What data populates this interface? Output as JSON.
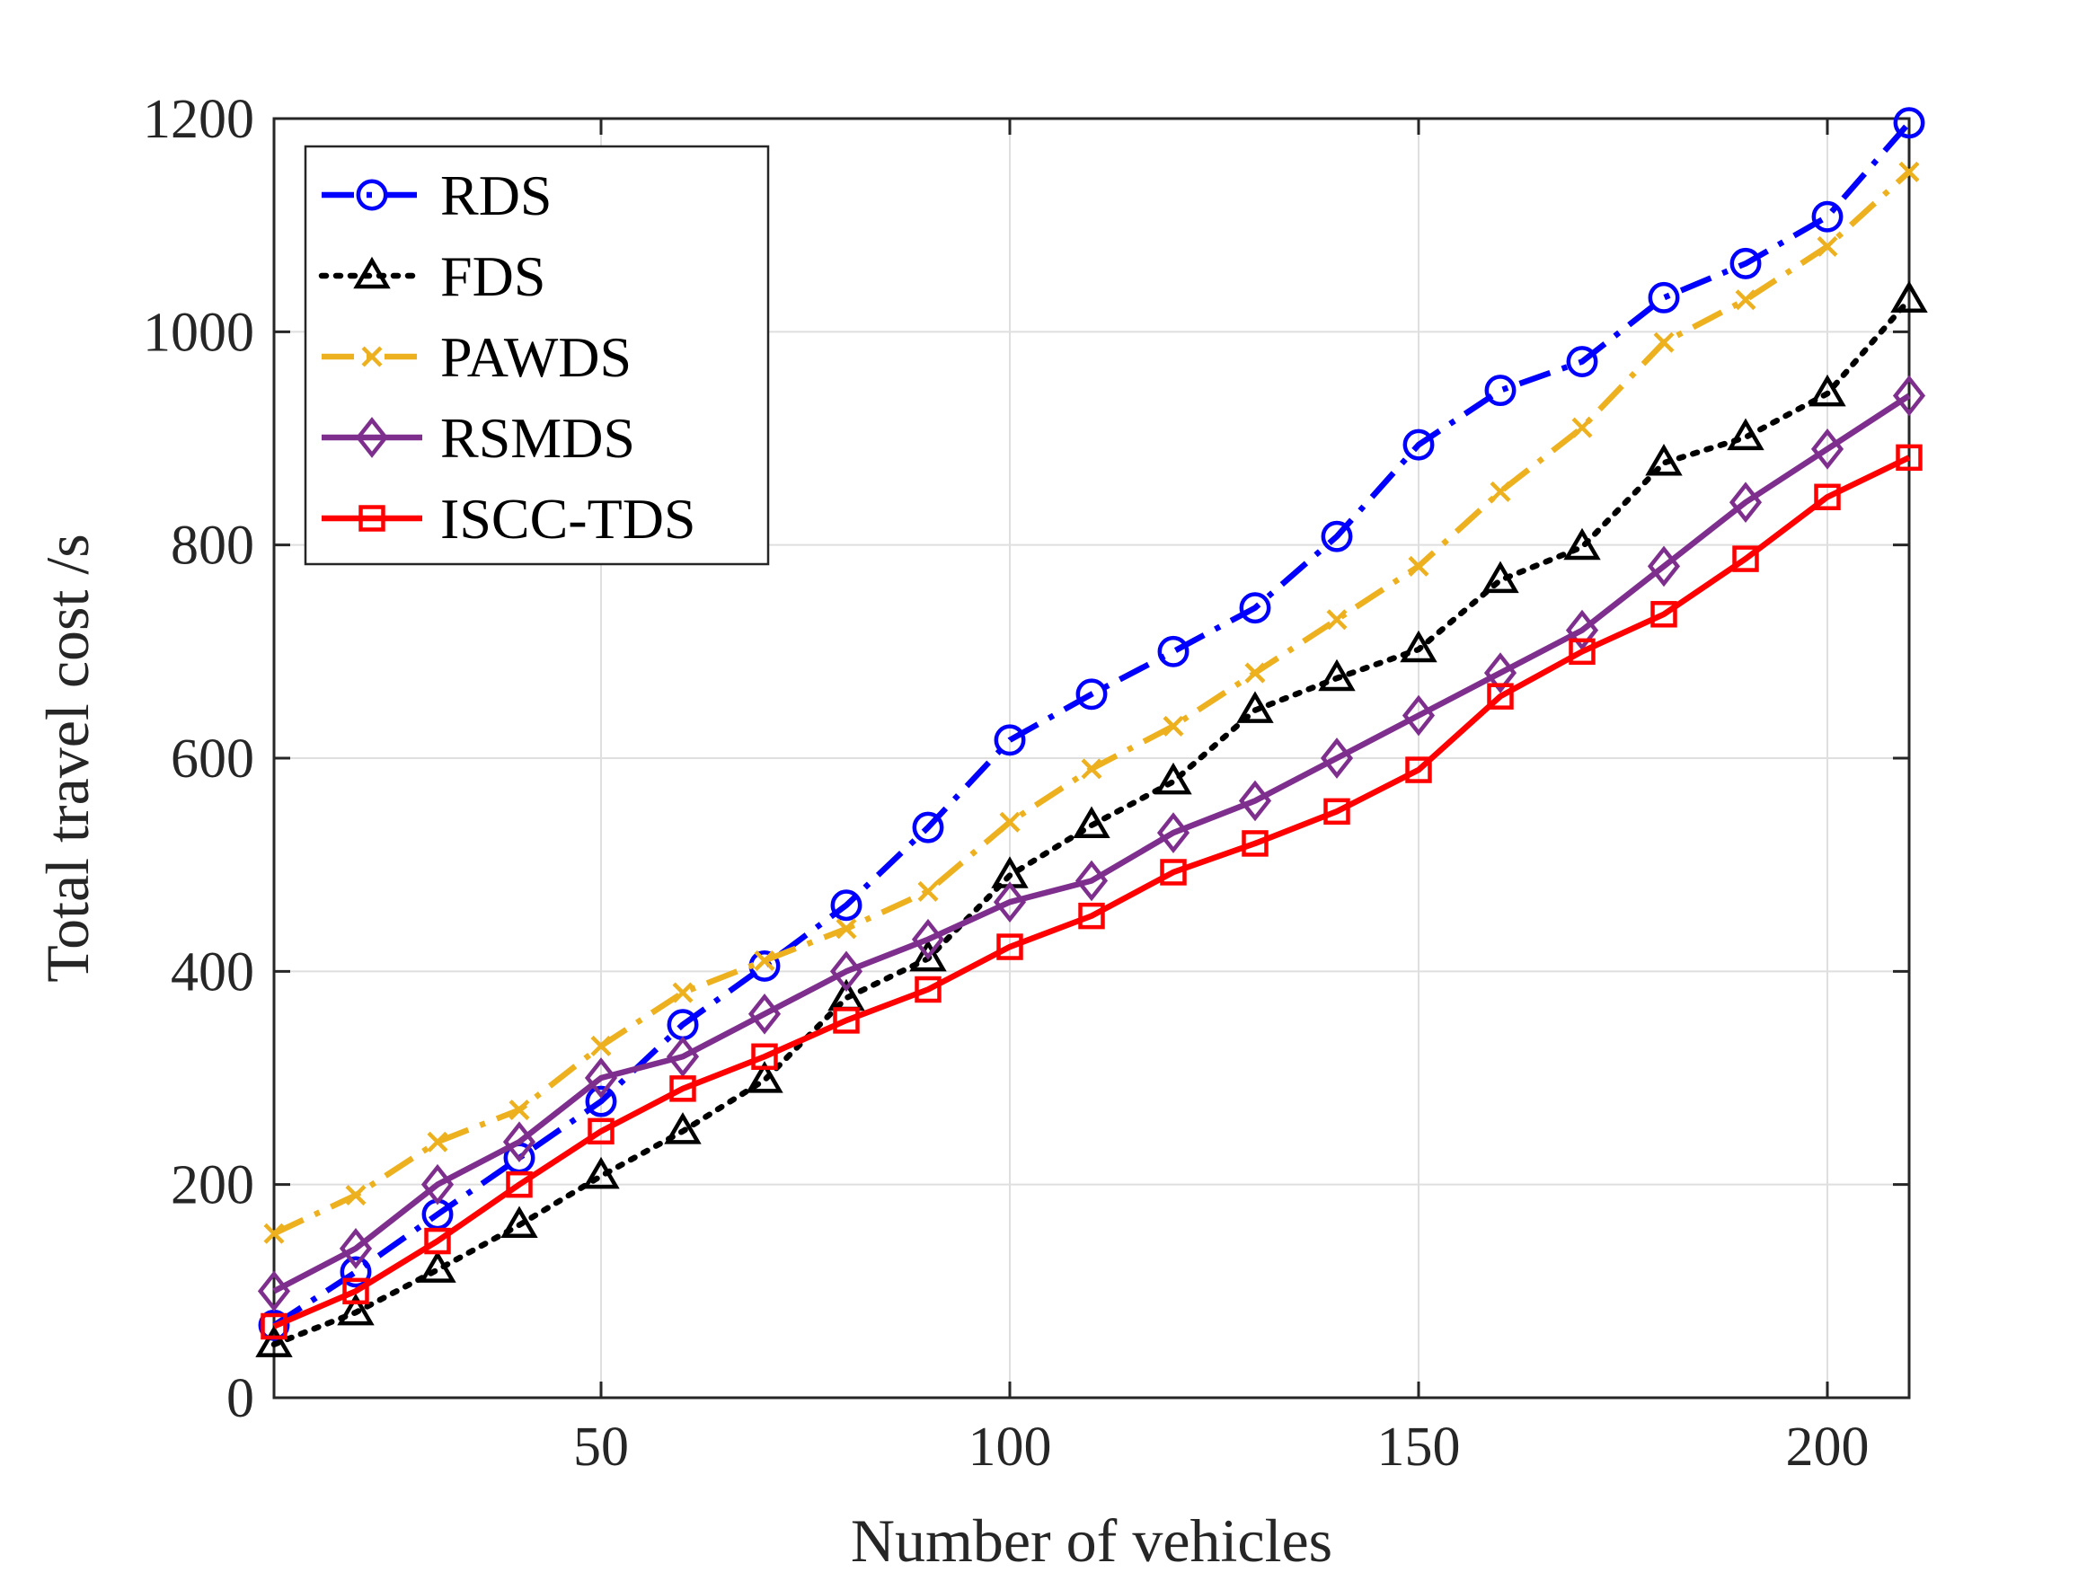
{
  "chart_data": {
    "type": "line",
    "xlabel": "Number of vehicles",
    "ylabel": "Total travel cost /s",
    "xlim": [
      10,
      210
    ],
    "ylim": [
      0,
      1200
    ],
    "xticks": [
      50,
      100,
      150,
      200
    ],
    "yticks": [
      0,
      200,
      400,
      600,
      800,
      1000,
      1200
    ],
    "xtick_labels": [
      "50",
      "100",
      "150",
      "200"
    ],
    "ytick_labels": [
      "0",
      "200",
      "400",
      "600",
      "800",
      "1000",
      "1200"
    ],
    "grid": true,
    "legend_position": "top-left",
    "x": [
      10,
      20,
      30,
      40,
      50,
      60,
      70,
      80,
      90,
      100,
      110,
      120,
      130,
      140,
      150,
      160,
      170,
      180,
      190,
      200,
      210
    ],
    "series": [
      {
        "name": "RDS",
        "color": "#0000ff",
        "dash": "dash-dot",
        "marker": "circle",
        "values": [
          68,
          118,
          172,
          225,
          278,
          350,
          405,
          462,
          535,
          617,
          660,
          700,
          741,
          808,
          894,
          945,
          972,
          1032,
          1064,
          1108,
          1196
        ]
      },
      {
        "name": "FDS",
        "color": "#000000",
        "dash": "dotted",
        "marker": "triangle",
        "values": [
          50,
          80,
          120,
          162,
          208,
          250,
          298,
          375,
          412,
          490,
          537,
          578,
          645,
          675,
          702,
          767,
          798,
          877,
          901,
          942,
          1030
        ]
      },
      {
        "name": "PAWDS",
        "color": "#edb120",
        "dash": "dash-dot",
        "marker": "x",
        "values": [
          154,
          190,
          240,
          270,
          330,
          380,
          410,
          440,
          475,
          540,
          590,
          630,
          680,
          730,
          780,
          850,
          910,
          990,
          1030,
          1080,
          1150
        ]
      },
      {
        "name": "RSMDS",
        "color": "#7e2f8e",
        "dash": "solid",
        "marker": "diamond",
        "values": [
          100,
          140,
          200,
          240,
          300,
          320,
          360,
          400,
          430,
          465,
          485,
          530,
          560,
          600,
          640,
          680,
          720,
          780,
          840,
          890,
          940
        ]
      },
      {
        "name": "ISCC-TDS",
        "color": "#ff0000",
        "dash": "solid",
        "marker": "square",
        "values": [
          67,
          100,
          147,
          200,
          250,
          290,
          320,
          354,
          383,
          423,
          452,
          493,
          520,
          550,
          589,
          658,
          700,
          735,
          787,
          845,
          882
        ]
      }
    ]
  }
}
